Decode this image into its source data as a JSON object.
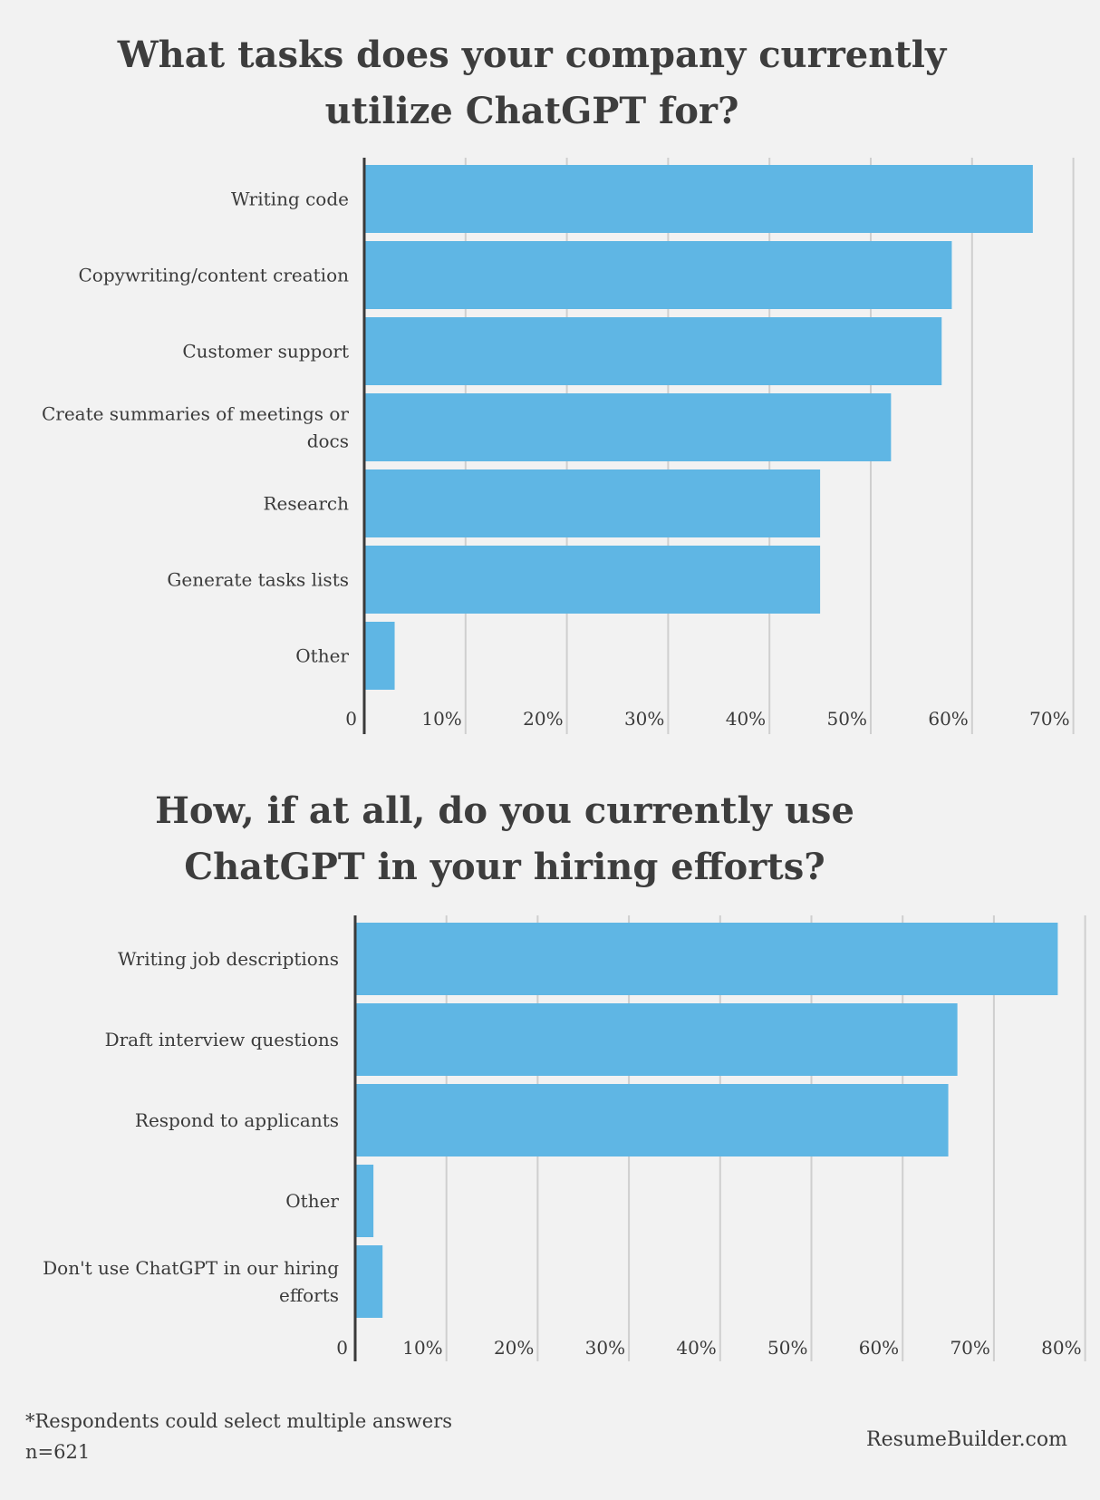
{
  "chart_data": [
    {
      "type": "bar",
      "orientation": "horizontal",
      "title": "What tasks does your company currently utilize ChatGPT for?",
      "categories": [
        "Writing code",
        "Copywriting/content creation",
        "Customer support",
        "Create summaries of meetings or docs",
        "Research",
        "Generate tasks lists",
        "Other"
      ],
      "label_lines": [
        [
          "Writing code"
        ],
        [
          "Copywriting/content creation"
        ],
        [
          "Customer support"
        ],
        [
          "Create summaries of meetings or",
          "docs"
        ],
        [
          "Research"
        ],
        [
          "Generate tasks lists"
        ],
        [
          "Other"
        ]
      ],
      "values": [
        66,
        58,
        57,
        52,
        45,
        45,
        3
      ],
      "xlim": [
        0,
        70
      ],
      "ticks": [
        0,
        10,
        20,
        30,
        40,
        50,
        60,
        70
      ],
      "tick_labels": [
        "0",
        "10%",
        "20%",
        "30%",
        "40%",
        "50%",
        "60%",
        "70%"
      ],
      "grid": true,
      "color": "#5fb6e4"
    },
    {
      "type": "bar",
      "orientation": "horizontal",
      "title": "How, if at all, do you currently use ChatGPT in your hiring efforts?",
      "categories": [
        "Writing job descriptions",
        "Draft interview questions",
        "Respond to applicants",
        "Other",
        "Don't use ChatGPT in our hiring efforts"
      ],
      "label_lines": [
        [
          "Writing job descriptions"
        ],
        [
          "Draft interview questions"
        ],
        [
          "Respond to applicants"
        ],
        [
          "Other"
        ],
        [
          "Don't use ChatGPT in our hiring",
          "efforts"
        ]
      ],
      "values": [
        77,
        66,
        65,
        2,
        3
      ],
      "xlim": [
        0,
        80
      ],
      "ticks": [
        0,
        10,
        20,
        30,
        40,
        50,
        60,
        70,
        80
      ],
      "tick_labels": [
        "0",
        "10%",
        "20%",
        "30%",
        "40%",
        "50%",
        "60%",
        "70%",
        "80%"
      ],
      "grid": true,
      "color": "#5fb6e4"
    }
  ],
  "footer": {
    "note": "*Respondents could select multiple answers",
    "sample": "n=621",
    "brand": "ResumeBuilder.com"
  }
}
